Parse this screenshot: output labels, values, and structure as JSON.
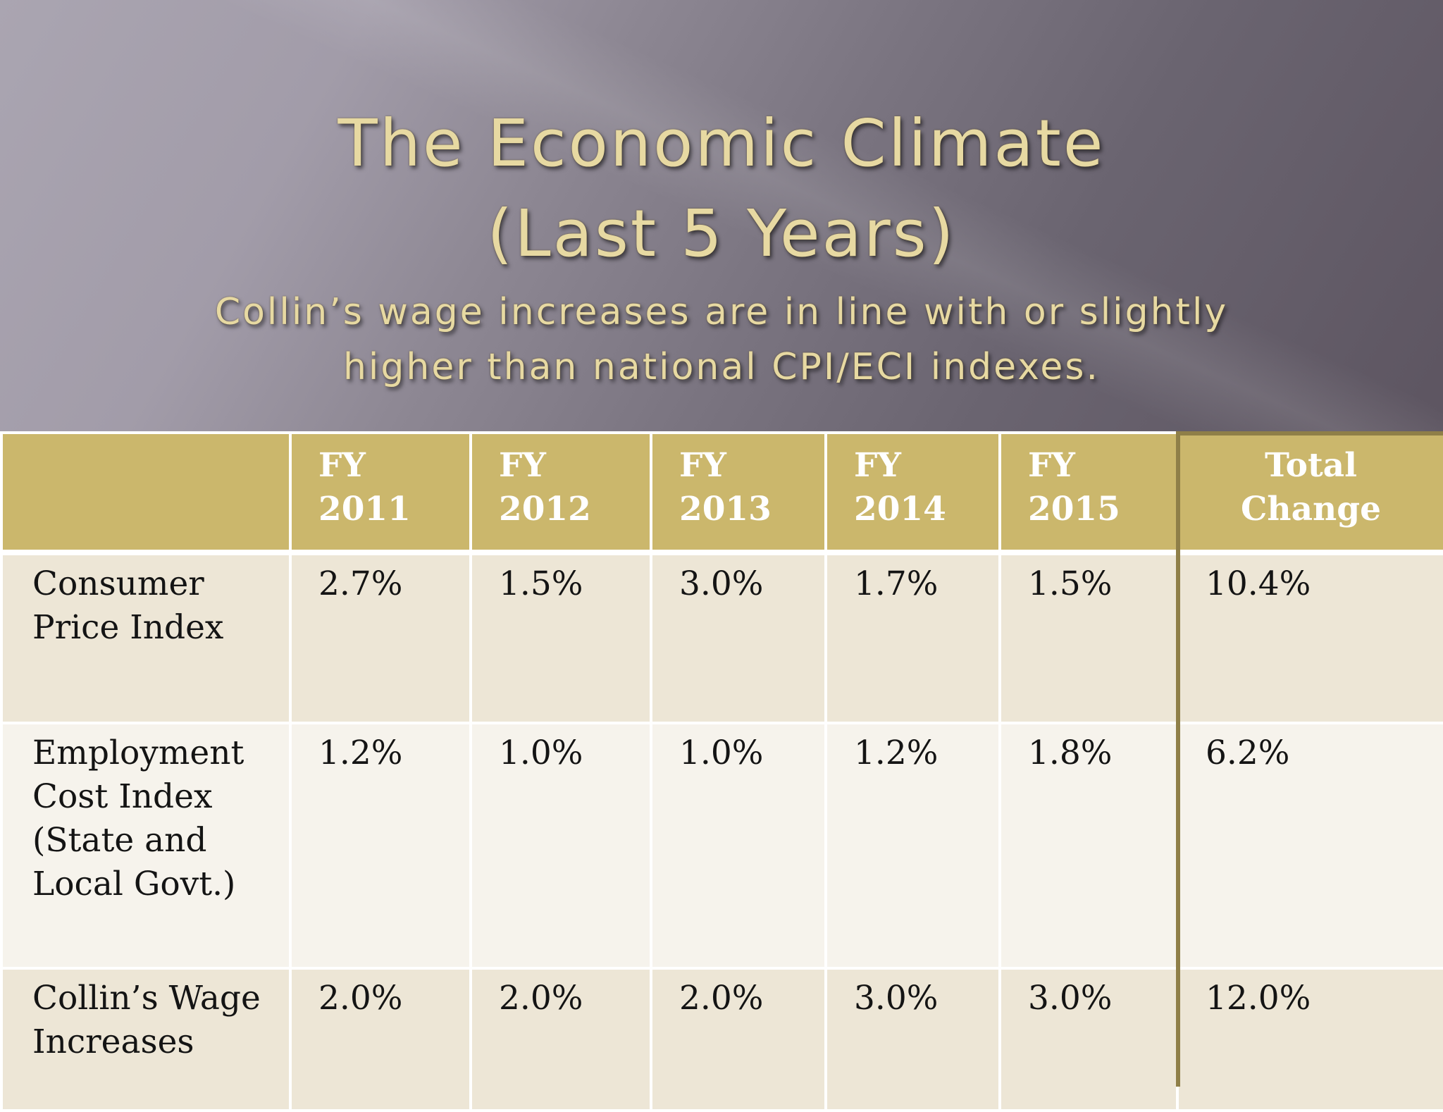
{
  "slide": {
    "title_line1": "The Economic Climate",
    "title_line2": "(Last 5 Years)",
    "subtitle": "Collin’s wage increases are in line with or slightly higher than national CPI/ECI indexes."
  },
  "table": {
    "headers": [
      {
        "line1": "",
        "line2": ""
      },
      {
        "line1": "FY",
        "line2": "2011"
      },
      {
        "line1": "FY",
        "line2": "2012"
      },
      {
        "line1": "FY",
        "line2": "2013"
      },
      {
        "line1": "FY",
        "line2": "2014"
      },
      {
        "line1": "FY",
        "line2": "2015"
      },
      {
        "line1": "Total",
        "line2": "Change"
      }
    ],
    "rows": [
      {
        "label_lines": [
          "Consumer",
          "Price Index"
        ],
        "values": [
          "2.7%",
          "1.5%",
          "3.0%",
          "1.7%",
          "1.5%",
          "10.4%"
        ]
      },
      {
        "label_lines": [
          "Employment",
          "Cost Index",
          "(State and",
          "Local Govt.)"
        ],
        "values": [
          "1.2%",
          "1.0%",
          "1.0%",
          "1.2%",
          "1.8%",
          "6.2%"
        ]
      },
      {
        "label_lines": [
          "Collin’s Wage",
          "Increases"
        ],
        "values": [
          "2.0%",
          "2.0%",
          "2.0%",
          "3.0%",
          "3.0%",
          "12.0%"
        ]
      }
    ]
  },
  "colors": {
    "header_fill": "#cbb76c",
    "row_odd_fill": "#ede6d6",
    "row_even_fill": "#f6f3ec",
    "title_color": "#e7d9a2",
    "total_column_frame": "#8f7f48"
  }
}
